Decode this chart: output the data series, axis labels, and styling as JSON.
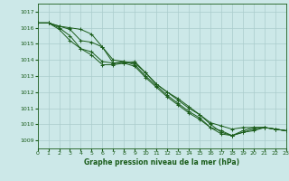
{
  "xlabel": "Graphe pression niveau de la mer (hPa)",
  "ylim": [
    1008.5,
    1017.5
  ],
  "xlim": [
    0,
    23
  ],
  "yticks": [
    1009,
    1010,
    1011,
    1012,
    1013,
    1014,
    1015,
    1016,
    1017
  ],
  "xticks": [
    0,
    1,
    2,
    3,
    4,
    5,
    6,
    7,
    8,
    9,
    10,
    11,
    12,
    13,
    14,
    15,
    16,
    17,
    18,
    19,
    20,
    21,
    22,
    23
  ],
  "bg_color": "#cce8e8",
  "grid_color": "#aacccc",
  "line_color": "#1a5c1a",
  "series": [
    [
      1016.3,
      1016.3,
      1016.1,
      1016.0,
      1015.9,
      1015.6,
      1014.8,
      1014.0,
      1013.9,
      1013.8,
      1013.2,
      1012.5,
      1012.0,
      1011.6,
      1011.1,
      1010.6,
      1010.1,
      1009.9,
      1009.7,
      1009.8,
      1009.8,
      1009.8,
      1009.7,
      1009.6
    ],
    [
      1016.3,
      1016.3,
      1016.1,
      1015.9,
      1015.2,
      1015.1,
      1014.8,
      1013.8,
      1013.8,
      1013.9,
      1013.2,
      1012.5,
      1012.0,
      1011.5,
      1011.0,
      1010.6,
      1010.0,
      1009.5,
      1009.3,
      1009.6,
      1009.8,
      1009.8,
      1009.7,
      1009.6
    ],
    [
      1016.3,
      1016.3,
      1016.0,
      1015.5,
      1014.7,
      1014.5,
      1013.9,
      1013.8,
      1013.9,
      1013.7,
      1013.0,
      1012.4,
      1011.8,
      1011.3,
      1010.8,
      1010.4,
      1009.8,
      1009.6,
      1009.3,
      1009.5,
      1009.7,
      1009.8,
      1009.7,
      1009.6
    ],
    [
      1016.3,
      1016.3,
      1015.9,
      1015.2,
      1014.7,
      1014.3,
      1013.7,
      1013.7,
      1013.8,
      1013.6,
      1012.9,
      1012.3,
      1011.7,
      1011.2,
      1010.7,
      1010.3,
      1009.8,
      1009.4,
      1009.3,
      1009.5,
      1009.6,
      1009.8,
      1009.7,
      1009.6
    ]
  ]
}
